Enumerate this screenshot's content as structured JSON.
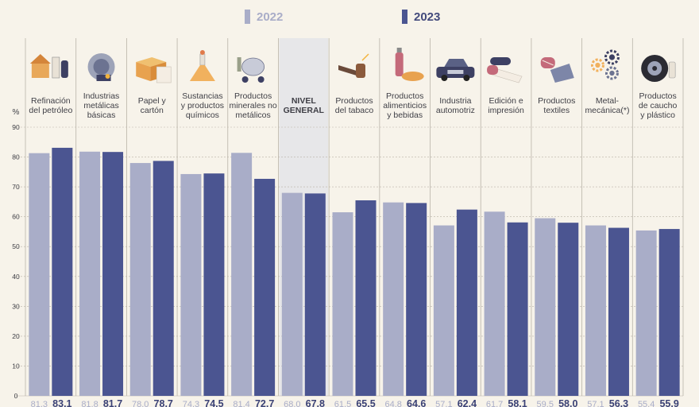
{
  "legend": {
    "y2022": "2022",
    "y2023": "2023"
  },
  "colors": {
    "s2022": "#a9adc8",
    "s2023": "#4b5591",
    "highlight": "#e7e7e9",
    "grid": "#b9b3a8",
    "text": "#3f3f46"
  },
  "chart_data": {
    "type": "bar",
    "ylabel": "%",
    "ylim": [
      0,
      90
    ],
    "yticks": [
      0,
      10,
      20,
      30,
      40,
      50,
      60,
      70,
      80,
      90
    ],
    "grid": true,
    "legend_position": "top",
    "categories": [
      {
        "label": "Refinación\ndel petróleo",
        "icon": "oil-refinery-icon"
      },
      {
        "label": "Industrias\nmetálicas\nbásicas",
        "icon": "steel-industry-icon"
      },
      {
        "label": "Papel y\ncartón",
        "icon": "paper-box-icon"
      },
      {
        "label": "Sustancias\ny productos\nquímicos",
        "icon": "chemical-flask-icon"
      },
      {
        "label": "Productos\nminerales no\nmetálicos",
        "icon": "cement-mixer-icon"
      },
      {
        "label": "NIVEL\nGENERAL",
        "icon": "",
        "highlight": true
      },
      {
        "label": "Productos\ndel tabaco",
        "icon": "pipe-icon"
      },
      {
        "label": "Productos\nalimenticios\ny bebidas",
        "icon": "food-drink-icon"
      },
      {
        "label": "Industria\nautomotriz",
        "icon": "car-icon"
      },
      {
        "label": "Edición e\nimpresión",
        "icon": "printing-roll-icon"
      },
      {
        "label": "Productos\ntextiles",
        "icon": "textile-icon"
      },
      {
        "label": "Metal-\nmecánica(*)",
        "icon": "gears-icon"
      },
      {
        "label": "Productos\nde caucho\ny plástico",
        "icon": "tire-icon"
      }
    ],
    "series": [
      {
        "name": "2022",
        "values": [
          81.3,
          81.8,
          78.0,
          74.3,
          81.4,
          68.0,
          61.5,
          64.8,
          57.1,
          61.7,
          59.5,
          57.1,
          55.4
        ]
      },
      {
        "name": "2023",
        "values": [
          83.1,
          81.7,
          78.7,
          74.5,
          72.7,
          67.8,
          65.5,
          64.6,
          62.4,
          58.1,
          58.0,
          56.3,
          55.9
        ]
      }
    ],
    "value_labels": {
      "2022": [
        "81,3",
        "81,8",
        "78,0",
        "74,3",
        "81,4",
        "68,0",
        "61,5",
        "64,8",
        "57,1",
        "61,7",
        "59,5",
        "57,1",
        "55,4"
      ],
      "2023": [
        "83,1",
        "81,7",
        "78,7",
        "74,5",
        "72,7",
        "67,8",
        "65,5",
        "64,6",
        "62,4",
        "58,1",
        "58,0",
        "56,3",
        "55,9"
      ]
    }
  }
}
